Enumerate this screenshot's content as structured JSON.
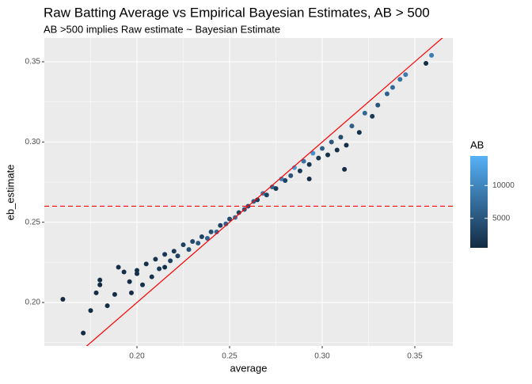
{
  "chart_data": {
    "type": "scatter",
    "title": "Raw Batting Average vs Empirical Bayesian Estimates, AB > 500",
    "subtitle": "AB >500 implies Raw estimate ~ Bayesian Estimate",
    "x_label": "average",
    "y_label": "eb_estimate",
    "xlim": [
      0.15,
      0.3705
    ],
    "ylim": [
      0.1729,
      0.3648
    ],
    "xticks": [
      {
        "value": 0.2,
        "label": "0.20"
      },
      {
        "value": 0.25,
        "label": "0.25"
      },
      {
        "value": 0.3,
        "label": "0.30"
      },
      {
        "value": 0.35,
        "label": "0.35"
      }
    ],
    "yticks": [
      {
        "value": 0.2,
        "label": "0.20"
      },
      {
        "value": 0.25,
        "label": "0.25"
      },
      {
        "value": 0.3,
        "label": "0.30"
      },
      {
        "value": 0.35,
        "label": "0.35"
      }
    ],
    "grid": true,
    "x": [
      0.16,
      0.171,
      0.175,
      0.178,
      0.18,
      0.18,
      0.184,
      0.188,
      0.19,
      0.193,
      0.196,
      0.197,
      0.2,
      0.203,
      0.205,
      0.208,
      0.21,
      0.212,
      0.215,
      0.218,
      0.22,
      0.222,
      0.225,
      0.228,
      0.23,
      0.233,
      0.235,
      0.238,
      0.24,
      0.243,
      0.245,
      0.248,
      0.25,
      0.253,
      0.255,
      0.258,
      0.26,
      0.263,
      0.265,
      0.268,
      0.27,
      0.273,
      0.275,
      0.278,
      0.28,
      0.283,
      0.285,
      0.288,
      0.29,
      0.293,
      0.295,
      0.298,
      0.3,
      0.303,
      0.305,
      0.308,
      0.31,
      0.313,
      0.316,
      0.32,
      0.323,
      0.327,
      0.33,
      0.335,
      0.338,
      0.342,
      0.345,
      0.356,
      0.359,
      0.293,
      0.312,
      0.2,
      0.215
    ],
    "values": [
      0.202,
      0.181,
      0.195,
      0.206,
      0.214,
      0.211,
      0.198,
      0.205,
      0.222,
      0.219,
      0.213,
      0.206,
      0.22,
      0.211,
      0.224,
      0.216,
      0.227,
      0.221,
      0.23,
      0.226,
      0.232,
      0.229,
      0.236,
      0.233,
      0.238,
      0.237,
      0.241,
      0.24,
      0.244,
      0.244,
      0.248,
      0.249,
      0.252,
      0.253,
      0.256,
      0.258,
      0.26,
      0.263,
      0.264,
      0.268,
      0.267,
      0.272,
      0.271,
      0.277,
      0.276,
      0.279,
      0.284,
      0.282,
      0.288,
      0.286,
      0.293,
      0.29,
      0.296,
      0.292,
      0.3,
      0.295,
      0.303,
      0.298,
      0.31,
      0.306,
      0.318,
      0.316,
      0.323,
      0.33,
      0.334,
      0.339,
      0.342,
      0.349,
      0.354,
      0.277,
      0.283,
      0.218,
      0.222
    ],
    "color_values": [
      600,
      600,
      700,
      650,
      700,
      600,
      800,
      700,
      900,
      800,
      700,
      800,
      900,
      1000,
      1100,
      1200,
      1500,
      2000,
      1800,
      2500,
      2200,
      3000,
      2800,
      4000,
      3500,
      5000,
      3000,
      6000,
      4000,
      7000,
      3000,
      6000,
      4000,
      8000,
      3000,
      5000,
      4000,
      6000,
      2500,
      9000,
      3000,
      7000,
      2000,
      10000,
      3000,
      5000,
      12000,
      2000,
      8000,
      1500,
      11000,
      2000,
      6000,
      1000,
      5000,
      900,
      4000,
      800,
      6000,
      1000,
      7000,
      2000,
      5000,
      6000,
      7000,
      8000,
      9000,
      700,
      9000,
      800,
      700,
      1000,
      800
    ],
    "color_title": "AB",
    "color_lim": [
      500,
      14500
    ],
    "color_range": [
      "#132B43",
      "#56B1F7"
    ],
    "color_ticks": [
      5000,
      10000
    ],
    "abline": {
      "slope": 1,
      "intercept": 0,
      "color": "#ff0000"
    },
    "hline": {
      "value": 0.26,
      "color": "#ff0000"
    }
  }
}
